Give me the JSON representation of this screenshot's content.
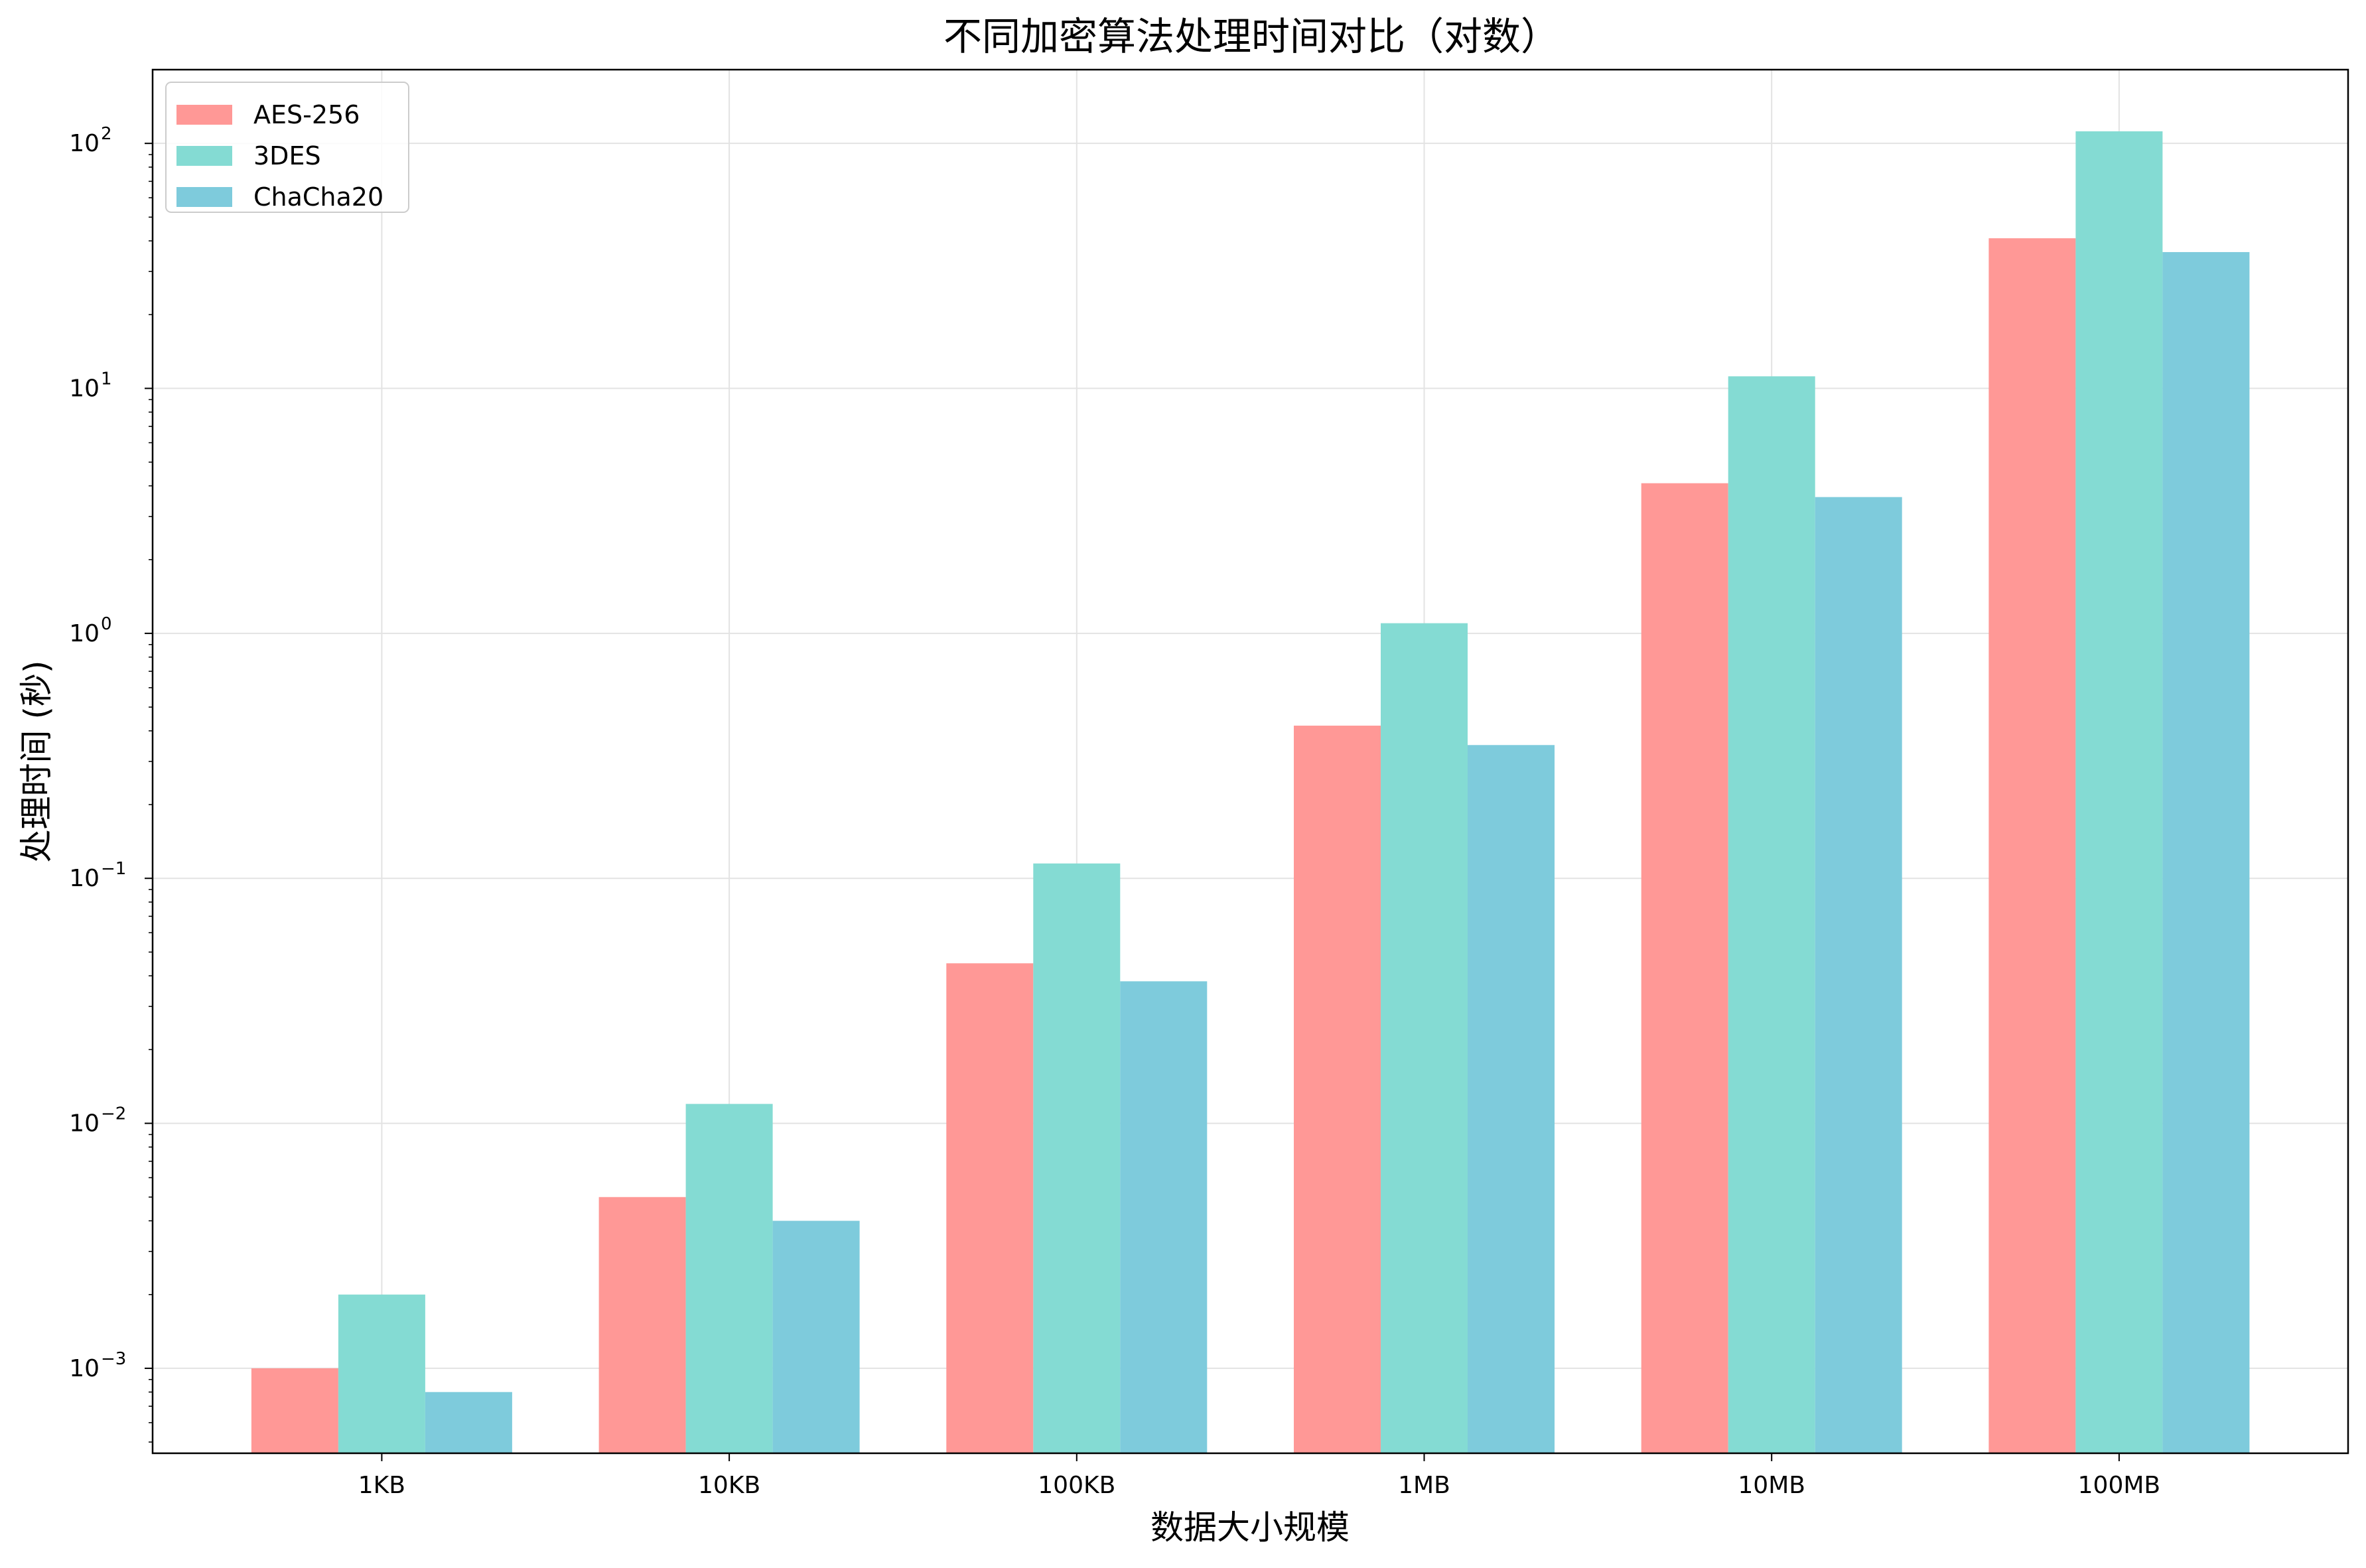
{
  "chart_data": {
    "type": "bar",
    "title": "不同加密算法处理时间对比（对数）",
    "xlabel": "数据大小规模",
    "ylabel": "处理时间 (秒)",
    "yscale": "log",
    "ylim": [
      0.00045,
      200
    ],
    "grid": true,
    "legend_position": "top-left",
    "categories": [
      "1KB",
      "10KB",
      "100KB",
      "1MB",
      "10MB",
      "100MB"
    ],
    "series": [
      {
        "name": "AES-256",
        "color": "#FF9896",
        "values": [
          0.001,
          0.005,
          0.045,
          0.42,
          4.1,
          41
        ]
      },
      {
        "name": "3DES",
        "color": "#84DBD3",
        "values": [
          0.002,
          0.012,
          0.115,
          1.1,
          11.2,
          112
        ]
      },
      {
        "name": "ChaCha20",
        "color": "#7ECBDC",
        "values": [
          0.0008,
          0.004,
          0.038,
          0.35,
          3.6,
          36
        ]
      }
    ],
    "y_ticks": [
      {
        "value": 0.001,
        "mantissa": "10",
        "exp": "−3"
      },
      {
        "value": 0.01,
        "mantissa": "10",
        "exp": "−2"
      },
      {
        "value": 0.1,
        "mantissa": "10",
        "exp": "−1"
      },
      {
        "value": 1,
        "mantissa": "10",
        "exp": "0"
      },
      {
        "value": 10,
        "mantissa": "10",
        "exp": "1"
      },
      {
        "value": 100,
        "mantissa": "10",
        "exp": "2"
      }
    ]
  }
}
